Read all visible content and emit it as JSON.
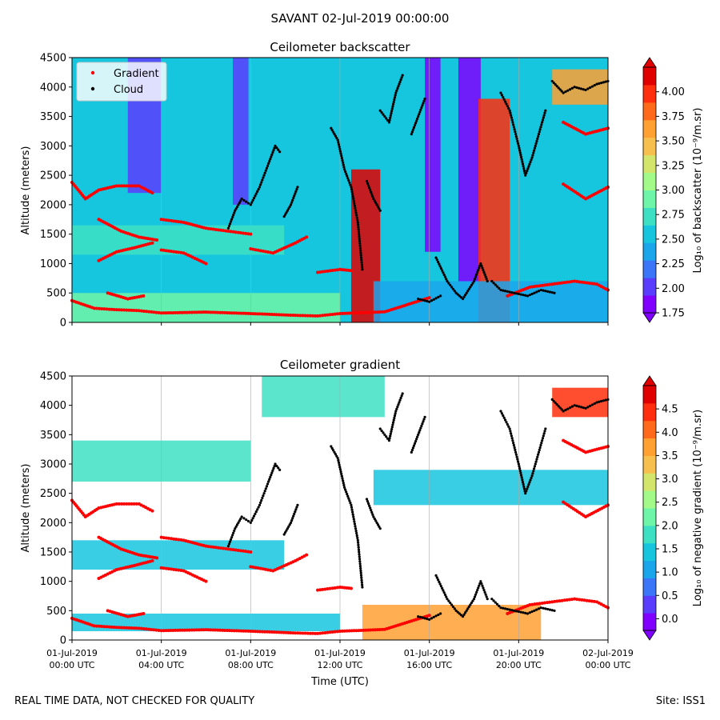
{
  "figure": {
    "suptitle": "SAVANT 02-Jul-2019 00:00:00",
    "footer_left": "REAL TIME DATA, NOT CHECKED FOR QUALITY",
    "footer_right": "Site: ISS1",
    "colormap": [
      "#7f00ff",
      "#5a3cfd",
      "#3b76f8",
      "#1ba6ec",
      "#16c5de",
      "#3ee0c4",
      "#6ef5a7",
      "#a2fa88",
      "#d3e56b",
      "#f7c04e",
      "#ffa032",
      "#ff6a1a",
      "#ff2e0c",
      "#e00000"
    ]
  },
  "chart_data": [
    {
      "type": "heatmap",
      "title": "Ceilometer backscatter",
      "ylabel": "Altitude (meters)",
      "xlabel": "",
      "ylim": [
        0,
        4500
      ],
      "yticks": [
        0,
        500,
        1000,
        1500,
        2000,
        2500,
        3000,
        3500,
        4000,
        4500
      ],
      "xticks": [
        0,
        4,
        8,
        12,
        16,
        20,
        24
      ],
      "xtick_labels": [],
      "xlim_hours": [
        0,
        24
      ],
      "colorbar": {
        "label": "Log₁₀ of backscatter (10⁻⁹/m.sr)",
        "range": [
          1.75,
          4.25
        ],
        "ticks": [
          "1.75",
          "2.00",
          "2.25",
          "2.50",
          "2.75",
          "3.00",
          "3.25",
          "3.50",
          "3.75",
          "4.00"
        ],
        "tick_values": [
          1.75,
          2.0,
          2.25,
          2.5,
          2.75,
          3.0,
          3.25,
          3.5,
          3.75,
          4.0
        ]
      },
      "legend": {
        "placement": "top-left",
        "entries": [
          {
            "label": "Gradient",
            "color": "#ff0000"
          },
          {
            "label": "Cloud",
            "color": "#000000"
          }
        ]
      },
      "background_level": 2.55,
      "features": [
        {
          "t0": 0.0,
          "t1": 9.5,
          "alt0": 1150,
          "alt1": 1650,
          "level": 2.75
        },
        {
          "t0": 0.0,
          "t1": 12.0,
          "alt0": 0,
          "alt1": 500,
          "level": 2.85
        },
        {
          "t0": 2.5,
          "t1": 4.0,
          "alt0": 2200,
          "alt1": 4500,
          "level": 2.05
        },
        {
          "t0": 7.2,
          "t1": 7.9,
          "alt0": 2000,
          "alt1": 4500,
          "level": 1.95
        },
        {
          "t0": 12.5,
          "t1": 13.8,
          "alt0": 0,
          "alt1": 2600,
          "level": 4.1
        },
        {
          "t0": 15.8,
          "t1": 16.5,
          "alt0": 1200,
          "alt1": 4500,
          "level": 1.6
        },
        {
          "t0": 17.3,
          "t1": 18.3,
          "alt0": 700,
          "alt1": 4500,
          "level": 1.6
        },
        {
          "t0": 18.2,
          "t1": 19.6,
          "alt0": 0,
          "alt1": 3800,
          "level": 3.9
        },
        {
          "t0": 21.5,
          "t1": 24.0,
          "alt0": 3700,
          "alt1": 4300,
          "level": 3.6
        },
        {
          "t0": 13.5,
          "t1": 24.0,
          "alt0": 0,
          "alt1": 700,
          "level": 2.35
        }
      ]
    },
    {
      "type": "heatmap",
      "title": "Ceilometer gradient",
      "ylabel": "Altitude (meters)",
      "xlabel": "Time (UTC)",
      "ylim": [
        0,
        4500
      ],
      "yticks": [
        0,
        500,
        1000,
        1500,
        2000,
        2500,
        3000,
        3500,
        4000,
        4500
      ],
      "xticks": [
        0,
        4,
        8,
        12,
        16,
        20,
        24
      ],
      "xtick_labels": [
        [
          "01-Jul-2019",
          "00:00 UTC"
        ],
        [
          "01-Jul-2019",
          "04:00 UTC"
        ],
        [
          "01-Jul-2019",
          "08:00 UTC"
        ],
        [
          "01-Jul-2019",
          "12:00 UTC"
        ],
        [
          "01-Jul-2019",
          "16:00 UTC"
        ],
        [
          "01-Jul-2019",
          "20:00 UTC"
        ],
        [
          "02-Jul-2019",
          "00:00 UTC"
        ]
      ],
      "xlim_hours": [
        0,
        24
      ],
      "colorbar": {
        "label": "Log₁₀ of negative gradient (10⁻⁹/m.sr)",
        "range": [
          -0.25,
          5.0
        ],
        "ticks": [
          "0.0",
          "0.5",
          "1.0",
          "1.5",
          "2.0",
          "2.5",
          "3.0",
          "3.5",
          "4.0",
          "4.5"
        ],
        "tick_values": [
          0,
          0.5,
          1,
          1.5,
          2,
          2.5,
          3,
          3.5,
          4,
          4.5
        ]
      },
      "background_level": null,
      "features": [
        {
          "t0": 0.0,
          "t1": 9.5,
          "alt0": 1200,
          "alt1": 1700,
          "level": 1.6
        },
        {
          "t0": 0.0,
          "t1": 12.0,
          "alt0": 150,
          "alt1": 450,
          "level": 1.3
        },
        {
          "t0": 0.0,
          "t1": 8.0,
          "alt0": 2700,
          "alt1": 3400,
          "level": 1.8
        },
        {
          "t0": 8.5,
          "t1": 14.0,
          "alt0": 3800,
          "alt1": 4500,
          "level": 1.7
        },
        {
          "t0": 13.5,
          "t1": 24.0,
          "alt0": 2300,
          "alt1": 2900,
          "level": 1.5
        },
        {
          "t0": 13.0,
          "t1": 21.0,
          "alt0": 0,
          "alt1": 600,
          "level": 3.6
        },
        {
          "t0": 21.5,
          "t1": 24.0,
          "alt0": 3800,
          "alt1": 4300,
          "level": 4.6
        }
      ]
    }
  ],
  "series": {
    "gradient": {
      "name": "Gradient",
      "color": "#ff0000",
      "tracks": [
        [
          [
            0,
            370
          ],
          [
            1,
            240
          ],
          [
            2,
            215
          ],
          [
            3,
            200
          ],
          [
            4,
            160
          ],
          [
            6,
            175
          ],
          [
            8,
            150
          ],
          [
            10,
            120
          ],
          [
            11,
            110
          ],
          [
            12,
            150
          ],
          [
            14,
            180
          ],
          [
            15,
            300
          ],
          [
            16,
            420
          ]
        ],
        [
          [
            0,
            2380
          ],
          [
            0.6,
            2100
          ],
          [
            1.2,
            2250
          ],
          [
            2,
            2320
          ],
          [
            3,
            2320
          ],
          [
            3.6,
            2200
          ]
        ],
        [
          [
            1.2,
            1750
          ],
          [
            2.2,
            1550
          ],
          [
            3,
            1450
          ],
          [
            3.8,
            1400
          ]
        ],
        [
          [
            4,
            1750
          ],
          [
            5,
            1700
          ],
          [
            6,
            1600
          ],
          [
            7,
            1550
          ],
          [
            8,
            1500
          ]
        ],
        [
          [
            1.2,
            1050
          ],
          [
            2,
            1200
          ],
          [
            2.8,
            1270
          ],
          [
            3.6,
            1350
          ]
        ],
        [
          [
            4,
            1230
          ],
          [
            5,
            1180
          ],
          [
            6,
            1000
          ]
        ],
        [
          [
            8,
            1250
          ],
          [
            9,
            1180
          ],
          [
            10,
            1350
          ],
          [
            10.5,
            1450
          ]
        ],
        [
          [
            11,
            850
          ],
          [
            12,
            900
          ],
          [
            12.5,
            880
          ]
        ],
        [
          [
            1.6,
            500
          ],
          [
            2.5,
            400
          ],
          [
            3.2,
            450
          ]
        ],
        [
          [
            19.5,
            450
          ],
          [
            20.5,
            600
          ],
          [
            21.5,
            650
          ],
          [
            22.5,
            700
          ],
          [
            23.5,
            650
          ],
          [
            24,
            550
          ]
        ],
        [
          [
            22,
            3400
          ],
          [
            23,
            3200
          ],
          [
            24,
            3300
          ]
        ],
        [
          [
            22,
            2350
          ],
          [
            23,
            2100
          ],
          [
            24,
            2300
          ]
        ]
      ]
    },
    "cloud": {
      "name": "Cloud",
      "color": "#000000",
      "tracks": [
        [
          [
            7,
            1600
          ],
          [
            7.3,
            1900
          ],
          [
            7.6,
            2100
          ],
          [
            8,
            2000
          ],
          [
            8.4,
            2300
          ],
          [
            8.8,
            2700
          ],
          [
            9.1,
            3000
          ],
          [
            9.3,
            2900
          ]
        ],
        [
          [
            9.5,
            1800
          ],
          [
            9.8,
            2000
          ],
          [
            10.1,
            2300
          ]
        ],
        [
          [
            11.6,
            3300
          ],
          [
            11.9,
            3100
          ],
          [
            12.2,
            2600
          ],
          [
            12.5,
            2300
          ],
          [
            12.8,
            1700
          ],
          [
            13.0,
            900
          ]
        ],
        [
          [
            13.2,
            2400
          ],
          [
            13.5,
            2100
          ],
          [
            13.8,
            1900
          ]
        ],
        [
          [
            13.8,
            3600
          ],
          [
            14.2,
            3400
          ],
          [
            14.5,
            3900
          ],
          [
            14.8,
            4200
          ]
        ],
        [
          [
            15.2,
            3200
          ],
          [
            15.5,
            3500
          ],
          [
            15.8,
            3800
          ]
        ],
        [
          [
            16.3,
            1100
          ],
          [
            16.8,
            700
          ],
          [
            17.2,
            500
          ],
          [
            17.5,
            400
          ],
          [
            18,
            700
          ],
          [
            18.3,
            1000
          ],
          [
            18.6,
            700
          ]
        ],
        [
          [
            15.5,
            400
          ],
          [
            16,
            350
          ],
          [
            16.5,
            450
          ]
        ],
        [
          [
            19.2,
            3900
          ],
          [
            19.6,
            3600
          ],
          [
            20,
            3000
          ],
          [
            20.3,
            2500
          ],
          [
            20.6,
            2800
          ],
          [
            20.9,
            3200
          ],
          [
            21.2,
            3600
          ]
        ],
        [
          [
            21.5,
            4100
          ],
          [
            22,
            3900
          ],
          [
            22.5,
            4000
          ],
          [
            23,
            3950
          ],
          [
            23.5,
            4050
          ],
          [
            24,
            4100
          ]
        ],
        [
          [
            18.8,
            700
          ],
          [
            19.2,
            550
          ],
          [
            19.8,
            500
          ],
          [
            20.4,
            450
          ],
          [
            21,
            550
          ],
          [
            21.6,
            500
          ]
        ]
      ]
    }
  }
}
